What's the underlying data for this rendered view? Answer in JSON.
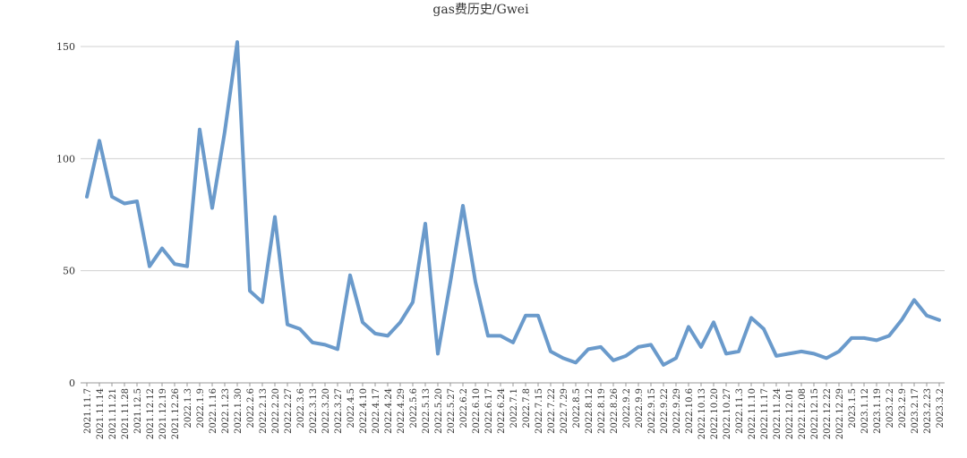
{
  "chart_data": {
    "type": "line",
    "title": "gas费历史/Gwei",
    "xlabel": "",
    "ylabel": "",
    "ylim": [
      0,
      150
    ],
    "yticks": [
      0,
      50,
      100,
      150
    ],
    "grid": true,
    "series_color": "#6a9acb",
    "categories": [
      "2021.11.7",
      "2021.11.14",
      "2021.11.21",
      "2021.11.28",
      "2021.12.5",
      "2021.12.12",
      "2021.12.19",
      "2021.12.26",
      "2022.1.3",
      "2022.1.9",
      "2022.1.16",
      "2022.1.23",
      "2022.1.30",
      "2022.2.6",
      "2022.2.13",
      "2022.2.20",
      "2022.2.27",
      "2022.3.6",
      "2022.3.13",
      "2022.3.20",
      "2022.3.27",
      "2022.4.5",
      "2022.4.10",
      "2022.4.17",
      "2022.4.24",
      "2022.4.29",
      "2022.5.6",
      "2022.5.13",
      "2022.5.20",
      "2022.5.27",
      "2022.6.2",
      "2022.6.10",
      "2022.6.17",
      "2022.6.24",
      "2022.7.1",
      "2022.7.8",
      "2022.7.15",
      "2022.7.22",
      "2022.7.29",
      "2022.8.5",
      "2022.8.12",
      "2022.8.19",
      "2022.8.26",
      "2022.9.2",
      "2022.9.9",
      "2022.9.15",
      "2022.9.22",
      "2022.9.29",
      "2022.10.6",
      "2022.10.13",
      "2022.10.20",
      "2022.10.27",
      "2022.11.3",
      "2022.11.10",
      "2022.11.17",
      "2022.11.24",
      "2022.12.01",
      "2022.12.08",
      "2022.12.15",
      "2022.12.22",
      "2022.12.29",
      "2023.1.5",
      "2023.1.12",
      "2023.1.19",
      "2023.2.2",
      "2023.2.9",
      "2023.2.17",
      "2023.2.23",
      "2023.3.2"
    ],
    "series": [
      {
        "values": [
          83,
          108,
          83,
          80,
          81,
          52,
          60,
          53,
          52,
          113,
          78,
          112,
          152,
          41,
          36,
          74,
          26,
          24,
          18,
          17,
          15,
          48,
          27,
          22,
          21,
          27,
          36,
          71,
          13,
          45,
          79,
          45,
          21,
          21,
          18,
          30,
          30,
          14,
          11,
          9,
          15,
          16,
          10,
          12,
          16,
          17,
          8,
          11,
          25,
          16,
          27,
          13,
          14,
          29,
          24,
          12,
          13,
          14,
          13,
          11,
          14,
          20,
          20,
          19,
          21,
          28,
          37,
          30,
          28
        ]
      }
    ]
  }
}
